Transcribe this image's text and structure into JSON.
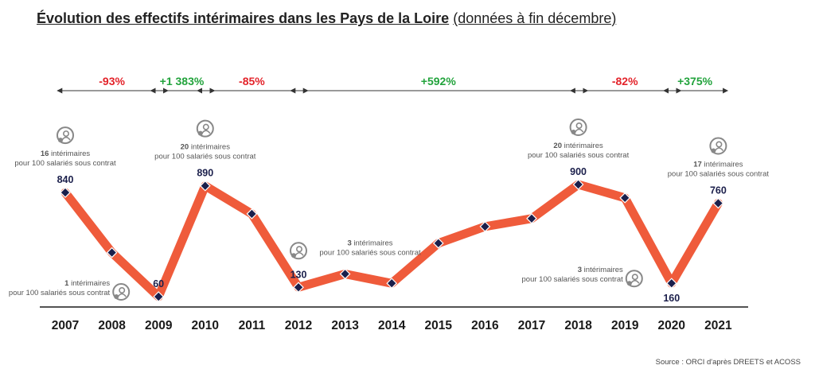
{
  "title": "Évolution des effectifs intérimaires dans les Pays de la Loire",
  "subtitle": "(données à fin décembre)",
  "source": "Source : ORCI d'après DREETS et ACOSS",
  "colors": {
    "line": "#EF5B3B",
    "marker": "#1B1F4B",
    "positive": "#22A33C",
    "negative": "#E3232A",
    "axis": "#1a1a1a",
    "note": "#555555",
    "icon": "#888888"
  },
  "chart_data": {
    "type": "line",
    "categories": [
      "2007",
      "2008",
      "2009",
      "2010",
      "2011",
      "2012",
      "2013",
      "2014",
      "2015",
      "2016",
      "2017",
      "2018",
      "2019",
      "2020",
      "2021"
    ],
    "values": [
      840,
      390,
      60,
      890,
      680,
      130,
      230,
      160,
      460,
      585,
      645,
      900,
      800,
      160,
      760
    ],
    "ylim": [
      0,
      1000
    ],
    "data_labels": [
      {
        "index": 0,
        "text": "840",
        "position": "above"
      },
      {
        "index": 2,
        "text": "60",
        "position": "above"
      },
      {
        "index": 3,
        "text": "890",
        "position": "above"
      },
      {
        "index": 5,
        "text": "130",
        "position": "above"
      },
      {
        "index": 11,
        "text": "900",
        "position": "above"
      },
      {
        "index": 13,
        "text": "160",
        "position": "below"
      },
      {
        "index": 14,
        "text": "760",
        "position": "above"
      }
    ],
    "periods": [
      {
        "from": 0,
        "to": 2,
        "label": "-93%",
        "trend": "negative"
      },
      {
        "from": 2,
        "to": 3,
        "label": "+1 383%",
        "trend": "positive"
      },
      {
        "from": 3,
        "to": 5,
        "label": "-85%",
        "trend": "negative"
      },
      {
        "from": 5,
        "to": 11,
        "label": "+592%",
        "trend": "positive"
      },
      {
        "from": 11,
        "to": 13,
        "label": "-82%",
        "trend": "negative"
      },
      {
        "from": 13,
        "to": 14,
        "label": "+375%",
        "trend": "positive"
      }
    ],
    "annotations": [
      {
        "index": 0,
        "count": "16",
        "text": "intérimaires",
        "text2": "pour 100 salariés sous contrat",
        "position": "above"
      },
      {
        "index": 2,
        "count": "1",
        "text": "intérimaires",
        "text2": "pour 100 salariés sous contrat",
        "position": "left-below"
      },
      {
        "index": 3,
        "count": "20",
        "text": "intérimaires",
        "text2": "pour 100 salariés sous contrat",
        "position": "above"
      },
      {
        "index": 5,
        "count": "3",
        "text": "intérimaires",
        "text2": "pour 100 salariés sous contrat",
        "position": "right"
      },
      {
        "index": 11,
        "count": "20",
        "text": "intérimaires",
        "text2": "pour 100 salariés sous contrat",
        "position": "above"
      },
      {
        "index": 13,
        "count": "3",
        "text": "intérimaires",
        "text2": "pour 100 salariés sous contrat",
        "position": "left-below"
      },
      {
        "index": 14,
        "count": "17",
        "text": "intérimaires",
        "text2": "pour 100 salariés sous contrat",
        "position": "above"
      }
    ]
  }
}
